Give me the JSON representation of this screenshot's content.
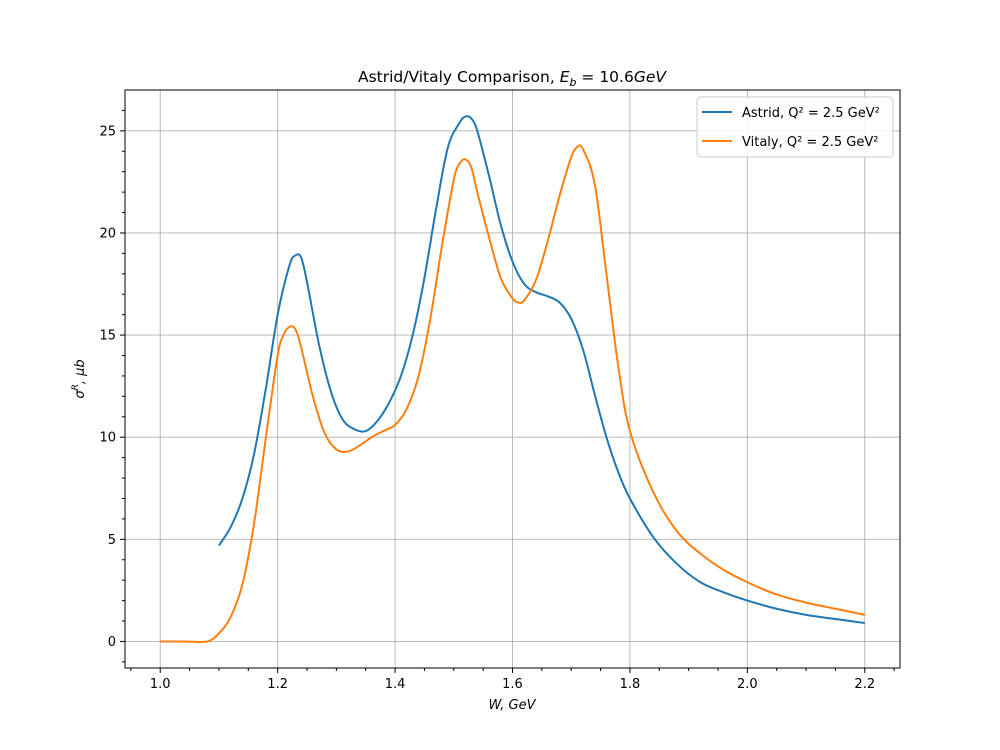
{
  "chart_data": {
    "type": "line",
    "title": "Astrid/Vitaly Comparison, E_b = 10.6GeV",
    "xlabel": "W, GeV",
    "ylabel": "σ^R, μb",
    "xlim": [
      0.94,
      2.26
    ],
    "ylim": [
      -1.3,
      27.0
    ],
    "xticks": [
      1.0,
      1.2,
      1.4,
      1.6,
      1.8,
      2.0,
      2.2
    ],
    "xtick_labels": [
      "1.0",
      "1.2",
      "1.4",
      "1.6",
      "1.8",
      "2.0",
      "2.2"
    ],
    "yticks": [
      0,
      5,
      10,
      15,
      20,
      25
    ],
    "ytick_labels": [
      "0",
      "5",
      "10",
      "15",
      "20",
      "25"
    ],
    "grid": true,
    "legend_position": "top-right",
    "series": [
      {
        "name": "Astrid, Q² = 2.5 GeV²",
        "color": "#1f77b4",
        "x": [
          1.1,
          1.12,
          1.14,
          1.16,
          1.18,
          1.2,
          1.22,
          1.23,
          1.24,
          1.25,
          1.27,
          1.29,
          1.31,
          1.33,
          1.35,
          1.37,
          1.39,
          1.41,
          1.43,
          1.45,
          1.47,
          1.49,
          1.51,
          1.52,
          1.53,
          1.54,
          1.56,
          1.58,
          1.6,
          1.62,
          1.64,
          1.66,
          1.68,
          1.7,
          1.72,
          1.74,
          1.76,
          1.78,
          1.8,
          1.84,
          1.88,
          1.92,
          1.96,
          2.0,
          2.05,
          2.1,
          2.15,
          2.2
        ],
        "y": [
          4.7,
          5.6,
          7.0,
          9.2,
          12.4,
          16.0,
          18.4,
          18.9,
          18.8,
          17.6,
          14.6,
          12.3,
          10.9,
          10.4,
          10.3,
          10.8,
          11.7,
          13.0,
          15.0,
          17.8,
          21.2,
          24.2,
          25.4,
          25.7,
          25.6,
          25.0,
          22.8,
          20.4,
          18.6,
          17.5,
          17.1,
          16.9,
          16.6,
          15.8,
          14.3,
          12.1,
          10.0,
          8.3,
          7.0,
          5.1,
          3.8,
          2.9,
          2.4,
          2.0,
          1.6,
          1.3,
          1.1,
          0.9
        ]
      },
      {
        "name": "Vitaly, Q² = 2.5 GeV²",
        "color": "#ff7f0e",
        "x": [
          1.0,
          1.04,
          1.08,
          1.1,
          1.12,
          1.14,
          1.16,
          1.18,
          1.2,
          1.21,
          1.22,
          1.23,
          1.24,
          1.26,
          1.28,
          1.3,
          1.32,
          1.34,
          1.36,
          1.38,
          1.4,
          1.42,
          1.44,
          1.46,
          1.48,
          1.5,
          1.51,
          1.52,
          1.53,
          1.54,
          1.56,
          1.58,
          1.6,
          1.61,
          1.62,
          1.64,
          1.66,
          1.68,
          1.7,
          1.71,
          1.72,
          1.74,
          1.76,
          1.78,
          1.8,
          1.84,
          1.88,
          1.92,
          1.96,
          2.0,
          2.05,
          2.1,
          2.15,
          2.2
        ],
        "y": [
          0.0,
          0.0,
          0.0,
          0.4,
          1.2,
          2.8,
          5.8,
          10.0,
          14.0,
          15.0,
          15.4,
          15.3,
          14.4,
          12.0,
          10.2,
          9.4,
          9.3,
          9.6,
          10.0,
          10.3,
          10.6,
          11.4,
          13.0,
          15.8,
          19.4,
          22.6,
          23.4,
          23.6,
          23.2,
          22.0,
          19.8,
          17.8,
          16.8,
          16.6,
          16.7,
          17.7,
          19.6,
          21.8,
          23.7,
          24.2,
          24.1,
          22.4,
          18.0,
          13.5,
          10.3,
          7.3,
          5.4,
          4.3,
          3.5,
          2.9,
          2.3,
          1.9,
          1.6,
          1.3
        ]
      }
    ]
  }
}
